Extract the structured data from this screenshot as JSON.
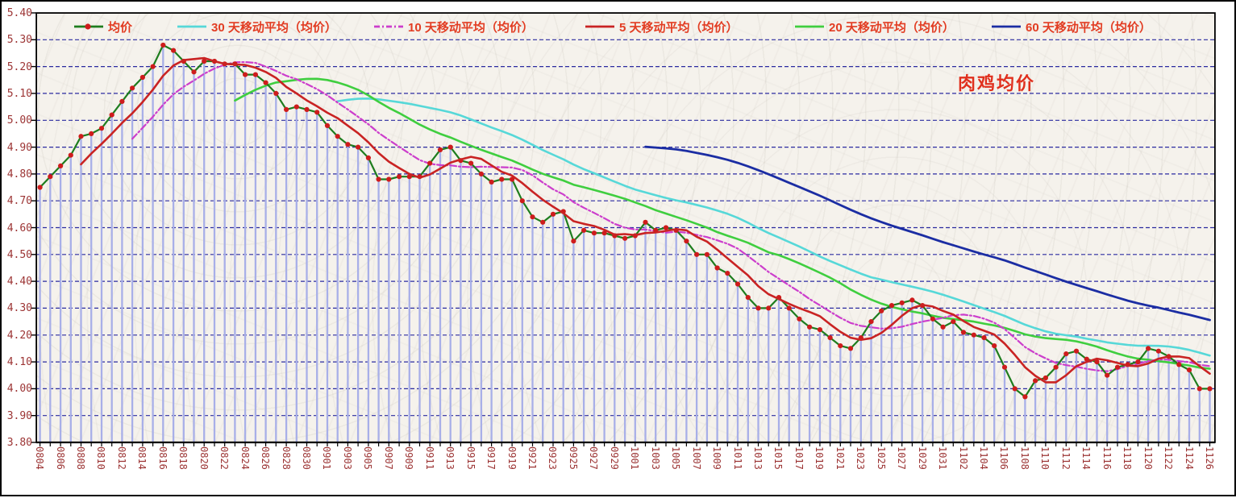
{
  "title": "肉鸡均价",
  "legend": [
    {
      "label": "均价",
      "color": "#1e7d1e",
      "style": "line-marker",
      "marker_color": "#ce1c1c"
    },
    {
      "label": "30 天移动平均（均价）",
      "color": "#56d8d8",
      "style": "solid"
    },
    {
      "label": "10 天移动平均（均价）",
      "color": "#cc3ecc",
      "style": "dash-dot"
    },
    {
      "label": "5 天移动平均（均价）",
      "color": "#c92323",
      "style": "solid"
    },
    {
      "label": "20 天移动平均（均价）",
      "color": "#3fce3f",
      "style": "solid"
    },
    {
      "label": "60 天移动平均（均价）",
      "color": "#1b2da3",
      "style": "solid"
    }
  ],
  "colors": {
    "grid": "#2b2ba0",
    "drop_line": "#a8afe8",
    "axis_text": "#9c3434",
    "legend_text": "#e23c22",
    "title_text": "#e02f1d",
    "border": "#000000"
  },
  "chart_data": {
    "type": "line",
    "title": "肉鸡均价",
    "x": [
      "0804",
      "0805",
      "0806",
      "0807",
      "0808",
      "0809",
      "0810",
      "0811",
      "0812",
      "0813",
      "0814",
      "0815",
      "0816",
      "0817",
      "0818",
      "0819",
      "0820",
      "0821",
      "0822",
      "0823",
      "0824",
      "0825",
      "0826",
      "0827",
      "0828",
      "0829",
      "0830",
      "0831",
      "0901",
      "0902",
      "0903",
      "0904",
      "0905",
      "0906",
      "0907",
      "0908",
      "0909",
      "0910",
      "0911",
      "0912",
      "0913",
      "0914",
      "0915",
      "0916",
      "0917",
      "0918",
      "0919",
      "0920",
      "0921",
      "0922",
      "0923",
      "0924",
      "0925",
      "0926",
      "0927",
      "0928",
      "0929",
      "0930",
      "1001",
      "1002",
      "1003",
      "1004",
      "1005",
      "1006",
      "1007",
      "1008",
      "1009",
      "1010",
      "1011",
      "1012",
      "1013",
      "1014",
      "1015",
      "1016",
      "1017",
      "1018",
      "1019",
      "1020",
      "1021",
      "1022",
      "1023",
      "1024",
      "1025",
      "1026",
      "1027",
      "1028",
      "1029",
      "1030",
      "1031",
      "1101",
      "1102",
      "1103",
      "1104",
      "1105",
      "1106",
      "1107",
      "1108",
      "1109",
      "1110",
      "1111",
      "1112",
      "1113",
      "1114",
      "1115",
      "1116",
      "1117",
      "1118",
      "1119",
      "1120",
      "1121",
      "1122",
      "1123",
      "1124",
      "1125",
      "1126"
    ],
    "x_label_every": 2,
    "series": [
      {
        "name": "均价",
        "window": 1,
        "color": "#1e7d1e",
        "marker_color": "#ce1c1c",
        "style": "line-marker",
        "values": [
          4.75,
          4.79,
          4.83,
          4.87,
          4.94,
          4.95,
          4.97,
          5.02,
          5.07,
          5.12,
          5.16,
          5.2,
          5.28,
          5.26,
          5.22,
          5.18,
          5.22,
          5.22,
          5.21,
          5.21,
          5.17,
          5.17,
          5.14,
          5.1,
          5.04,
          5.05,
          5.04,
          5.03,
          4.98,
          4.94,
          4.91,
          4.9,
          4.86,
          4.78,
          4.78,
          4.79,
          4.79,
          4.79,
          4.84,
          4.89,
          4.9,
          4.85,
          4.84,
          4.8,
          4.77,
          4.78,
          4.78,
          4.7,
          4.64,
          4.62,
          4.65,
          4.66,
          4.55,
          4.59,
          4.58,
          4.58,
          4.57,
          4.56,
          4.57,
          4.62,
          4.59,
          4.6,
          4.59,
          4.55,
          4.5,
          4.5,
          4.45,
          4.43,
          4.39,
          4.34,
          4.3,
          4.3,
          4.34,
          4.3,
          4.26,
          4.23,
          4.22,
          4.19,
          4.16,
          4.15,
          4.19,
          4.25,
          4.29,
          4.31,
          4.32,
          4.33,
          4.31,
          4.26,
          4.23,
          4.25,
          4.21,
          4.2,
          4.19,
          4.16,
          4.08,
          4.0,
          3.97,
          4.03,
          4.04,
          4.08,
          4.13,
          4.14,
          4.11,
          4.1,
          4.05,
          4.08,
          4.09,
          4.1,
          4.15,
          4.14,
          4.12,
          4.09,
          4.07,
          4.0,
          4.0
        ]
      },
      {
        "name": "30 天移动平均（均价）",
        "window": 30,
        "derived": "moving_average_of_均价",
        "color": "#56d8d8",
        "style": "solid"
      },
      {
        "name": "20 天移动平均（均价）",
        "window": 20,
        "derived": "moving_average_of_均价",
        "color": "#3fce3f",
        "style": "solid"
      },
      {
        "name": "10 天移动平均（均价）",
        "window": 10,
        "derived": "moving_average_of_均价",
        "color": "#cc3ecc",
        "style": "dash-dot"
      },
      {
        "name": "5 天移动平均（均价）",
        "window": 5,
        "derived": "moving_average_of_均价",
        "color": "#c92323",
        "style": "solid"
      },
      {
        "name": "60 天移动平均（均价）",
        "window": 60,
        "derived": "moving_average_of_均价",
        "color": "#1b2da3",
        "style": "solid"
      }
    ],
    "ylim": [
      3.8,
      5.4
    ],
    "y_tick_labels": [
      "5.40",
      "5.30",
      "5.20",
      "5.10",
      "5.00",
      "4.90",
      "4.80",
      "4.70",
      "4.60",
      "4.50",
      "4.40",
      "4.30",
      "4.20",
      "4.10",
      "4.00",
      "3.90",
      "3.80"
    ],
    "grid": "horizontal-dashed",
    "drop_lines": true,
    "legend_position": "top"
  }
}
